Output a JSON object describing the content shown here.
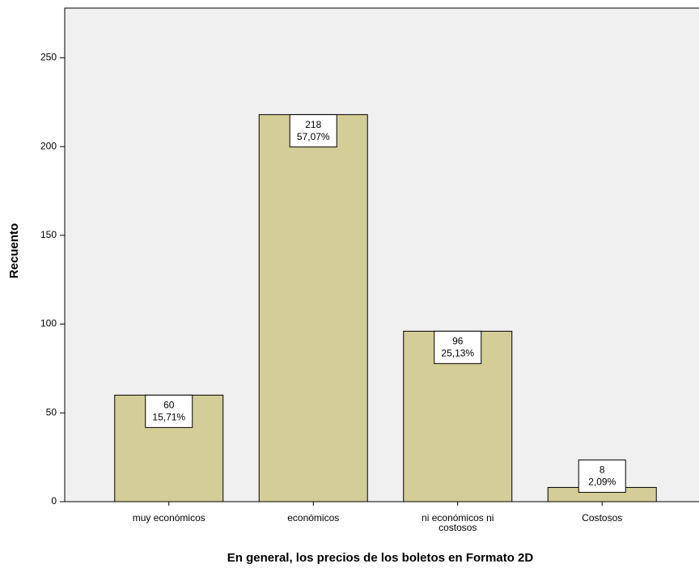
{
  "chart_data": {
    "type": "bar",
    "x_label": "En general, los precios de los boletos en Formato 2D",
    "y_label": "Recuento",
    "categories": [
      "muy económicos",
      "económicos",
      "ni económicos ni costosos",
      "Costosos"
    ],
    "values": [
      60,
      218,
      96,
      8
    ],
    "percent_labels": [
      "15,71%",
      "57,07%",
      "25,13%",
      "2,09%"
    ],
    "color": "#d3ce97",
    "ylim": [
      0,
      278
    ],
    "yticks": [
      0,
      50,
      100,
      150,
      200,
      250
    ],
    "grid": false
  }
}
